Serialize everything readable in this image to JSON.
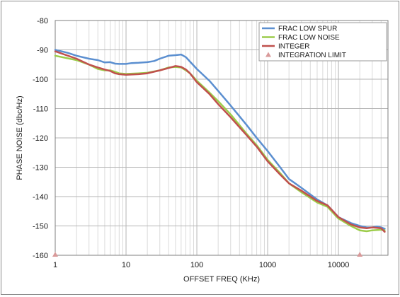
{
  "chart_data": {
    "type": "line",
    "xlabel": "OFFSET FREQ (KHz)",
    "ylabel": "PHASE NOISE (dbc/Hz)",
    "x_scale": "log",
    "xlim": [
      1,
      50000
    ],
    "ylim": [
      -160,
      -80
    ],
    "x_ticks": [
      1,
      10,
      100,
      1000,
      10000
    ],
    "x_tick_labels": [
      "1",
      "10",
      "100",
      "1000",
      "10000"
    ],
    "y_ticks": [
      -160,
      -150,
      -140,
      -130,
      -120,
      -110,
      -100,
      -90,
      -80
    ],
    "y_tick_labels": [
      "-160",
      "-150",
      "-140",
      "-130",
      "-120",
      "-110",
      "-100",
      "-90",
      "-80"
    ],
    "grid": true,
    "legend_position": "top-right",
    "series": [
      {
        "name": "FRAC LOW SPUR",
        "color": "#5b8fd0",
        "points": [
          [
            1,
            -90
          ],
          [
            1.5,
            -91
          ],
          [
            2,
            -92
          ],
          [
            3,
            -93
          ],
          [
            4,
            -93.5
          ],
          [
            5,
            -94.3
          ],
          [
            6,
            -94.2
          ],
          [
            7,
            -94.7
          ],
          [
            8,
            -94.8
          ],
          [
            10,
            -94.8
          ],
          [
            12,
            -94.5
          ],
          [
            15,
            -94.4
          ],
          [
            20,
            -94.2
          ],
          [
            25,
            -93.8
          ],
          [
            30,
            -93
          ],
          [
            40,
            -92
          ],
          [
            50,
            -91.8
          ],
          [
            60,
            -91.6
          ],
          [
            70,
            -92.5
          ],
          [
            80,
            -94
          ],
          [
            100,
            -96.5
          ],
          [
            150,
            -100.5
          ],
          [
            200,
            -104
          ],
          [
            300,
            -109
          ],
          [
            500,
            -115.5
          ],
          [
            700,
            -120
          ],
          [
            1000,
            -124.5
          ],
          [
            1500,
            -130
          ],
          [
            2000,
            -134
          ],
          [
            3000,
            -137
          ],
          [
            5000,
            -141
          ],
          [
            7000,
            -143
          ],
          [
            10000,
            -147
          ],
          [
            15000,
            -149
          ],
          [
            20000,
            -150
          ],
          [
            25000,
            -150.5
          ],
          [
            30000,
            -150.5
          ],
          [
            35000,
            -150.2
          ],
          [
            40000,
            -150.5
          ],
          [
            45000,
            -151
          ]
        ]
      },
      {
        "name": "FRAC LOW NOISE",
        "color": "#9ccc4a",
        "points": [
          [
            1,
            -92
          ],
          [
            2,
            -93.5
          ],
          [
            3,
            -95
          ],
          [
            4,
            -96.5
          ],
          [
            5,
            -97
          ],
          [
            6,
            -97
          ],
          [
            7,
            -97.5
          ],
          [
            8,
            -98
          ],
          [
            10,
            -98.2
          ],
          [
            15,
            -98
          ],
          [
            20,
            -97.8
          ],
          [
            30,
            -97
          ],
          [
            40,
            -96
          ],
          [
            50,
            -95.8
          ],
          [
            60,
            -96
          ],
          [
            70,
            -97
          ],
          [
            80,
            -98
          ],
          [
            100,
            -100.5
          ],
          [
            150,
            -104.5
          ],
          [
            200,
            -107.5
          ],
          [
            300,
            -112
          ],
          [
            500,
            -118.5
          ],
          [
            700,
            -122.5
          ],
          [
            1000,
            -127.5
          ],
          [
            1500,
            -132
          ],
          [
            2000,
            -135.5
          ],
          [
            3000,
            -138.5
          ],
          [
            5000,
            -142
          ],
          [
            7000,
            -143.5
          ],
          [
            10000,
            -147.5
          ],
          [
            15000,
            -150
          ],
          [
            20000,
            -151.5
          ],
          [
            25000,
            -151.8
          ],
          [
            30000,
            -151.5
          ],
          [
            40000,
            -151.3
          ],
          [
            45000,
            -151.5
          ]
        ]
      },
      {
        "name": "INTEGER",
        "color": "#c0504d",
        "points": [
          [
            1,
            -90.5
          ],
          [
            2,
            -93
          ],
          [
            3,
            -95
          ],
          [
            4,
            -96
          ],
          [
            5,
            -96.7
          ],
          [
            6,
            -97.2
          ],
          [
            7,
            -98
          ],
          [
            8,
            -98.3
          ],
          [
            10,
            -98.5
          ],
          [
            15,
            -98.3
          ],
          [
            20,
            -98
          ],
          [
            30,
            -97
          ],
          [
            40,
            -96.2
          ],
          [
            50,
            -95.5
          ],
          [
            60,
            -95.8
          ],
          [
            70,
            -96.7
          ],
          [
            80,
            -98
          ],
          [
            100,
            -101
          ],
          [
            150,
            -105
          ],
          [
            200,
            -108.5
          ],
          [
            300,
            -113
          ],
          [
            500,
            -119
          ],
          [
            700,
            -123
          ],
          [
            1000,
            -128
          ],
          [
            1500,
            -132.5
          ],
          [
            2000,
            -135.5
          ],
          [
            3000,
            -138
          ],
          [
            5000,
            -141.5
          ],
          [
            7000,
            -143
          ],
          [
            10000,
            -147
          ],
          [
            15000,
            -149.5
          ],
          [
            20000,
            -150.5
          ],
          [
            25000,
            -150.8
          ],
          [
            30000,
            -150.5
          ],
          [
            40000,
            -150.8
          ],
          [
            45000,
            -152
          ]
        ]
      }
    ],
    "markers": {
      "name": "INTEGRATION LIMIT",
      "color": "#d99a9a",
      "shape": "triangle",
      "points": [
        [
          1,
          -160
        ],
        [
          20000,
          -160
        ]
      ]
    }
  }
}
